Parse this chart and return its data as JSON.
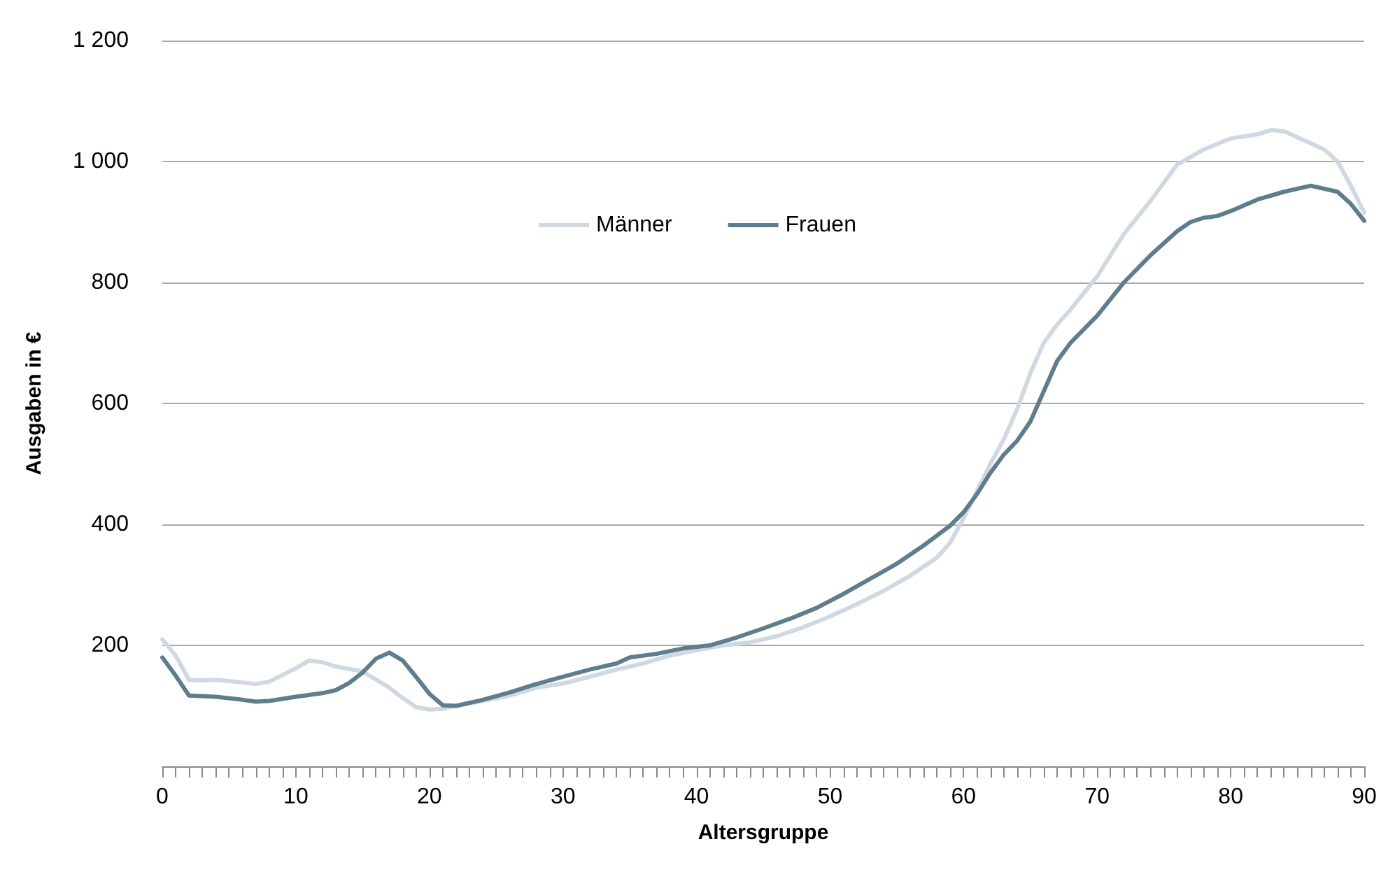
{
  "chart_data": {
    "type": "line",
    "xlabel": "Altersgruppe",
    "ylabel": "Ausgaben in €",
    "xlim": [
      0,
      90
    ],
    "xticks": [
      0,
      {
        "value": 1,
        "label": null
      },
      {
        "value": 2,
        "label": null
      },
      {
        "value": 3,
        "label": null
      },
      {
        "value": 4,
        "label": null
      },
      {
        "value": 5,
        "label": null
      },
      {
        "value": 6,
        "label": null
      },
      {
        "value": 7,
        "label": null
      },
      {
        "value": 8,
        "label": null
      },
      {
        "value": 9,
        "label": null
      },
      10,
      {
        "value": 11,
        "label": null
      },
      {
        "value": 12,
        "label": null
      },
      {
        "value": 13,
        "label": null
      },
      {
        "value": 14,
        "label": null
      },
      {
        "value": 15,
        "label": null
      },
      {
        "value": 16,
        "label": null
      },
      {
        "value": 17,
        "label": null
      },
      {
        "value": 18,
        "label": null
      },
      {
        "value": 19,
        "label": null
      },
      20,
      {
        "value": 21,
        "label": null
      },
      {
        "value": 22,
        "label": null
      },
      {
        "value": 23,
        "label": null
      },
      {
        "value": 24,
        "label": null
      },
      {
        "value": 25,
        "label": null
      },
      {
        "value": 26,
        "label": null
      },
      {
        "value": 27,
        "label": null
      },
      {
        "value": 28,
        "label": null
      },
      {
        "value": 29,
        "label": null
      },
      30,
      {
        "value": 31,
        "label": null
      },
      {
        "value": 32,
        "label": null
      },
      {
        "value": 33,
        "label": null
      },
      {
        "value": 34,
        "label": null
      },
      {
        "value": 35,
        "label": null
      },
      {
        "value": 36,
        "label": null
      },
      {
        "value": 37,
        "label": null
      },
      {
        "value": 38,
        "label": null
      },
      {
        "value": 39,
        "label": null
      },
      40,
      {
        "value": 41,
        "label": null
      },
      {
        "value": 42,
        "label": null
      },
      {
        "value": 43,
        "label": null
      },
      {
        "value": 44,
        "label": null
      },
      {
        "value": 45,
        "label": null
      },
      {
        "value": 46,
        "label": null
      },
      {
        "value": 47,
        "label": null
      },
      {
        "value": 48,
        "label": null
      },
      {
        "value": 49,
        "label": null
      },
      50,
      {
        "value": 51,
        "label": null
      },
      {
        "value": 52,
        "label": null
      },
      {
        "value": 53,
        "label": null
      },
      {
        "value": 54,
        "label": null
      },
      {
        "value": 55,
        "label": null
      },
      {
        "value": 56,
        "label": null
      },
      {
        "value": 57,
        "label": null
      },
      {
        "value": 58,
        "label": null
      },
      {
        "value": 59,
        "label": null
      },
      60,
      {
        "value": 61,
        "label": null
      },
      {
        "value": 62,
        "label": null
      },
      {
        "value": 63,
        "label": null
      },
      {
        "value": 64,
        "label": null
      },
      {
        "value": 65,
        "label": null
      },
      {
        "value": 66,
        "label": null
      },
      {
        "value": 67,
        "label": null
      },
      {
        "value": 68,
        "label": null
      },
      {
        "value": 69,
        "label": null
      },
      70,
      {
        "value": 71,
        "label": null
      },
      {
        "value": 72,
        "label": null
      },
      {
        "value": 73,
        "label": null
      },
      {
        "value": 74,
        "label": null
      },
      {
        "value": 75,
        "label": null
      },
      {
        "value": 76,
        "label": null
      },
      {
        "value": 77,
        "label": null
      },
      {
        "value": 78,
        "label": null
      },
      {
        "value": 79,
        "label": null
      },
      80,
      {
        "value": 81,
        "label": null
      },
      {
        "value": 82,
        "label": null
      },
      {
        "value": 83,
        "label": null
      },
      {
        "value": 84,
        "label": null
      },
      {
        "value": 85,
        "label": null
      },
      {
        "value": 86,
        "label": null
      },
      {
        "value": 87,
        "label": null
      },
      {
        "value": 88,
        "label": null
      },
      {
        "value": 89,
        "label": null
      },
      90
    ],
    "ylim": [
      0,
      1200
    ],
    "yticks": [
      {
        "value": 200,
        "label": "200"
      },
      {
        "value": 400,
        "label": "400"
      },
      {
        "value": 600,
        "label": "600"
      },
      {
        "value": 800,
        "label": "800"
      },
      {
        "value": 1000,
        "label": "1 000"
      },
      {
        "value": 1200,
        "label": "1 200"
      }
    ],
    "grid": "y",
    "legend": "top",
    "marker": "none",
    "line_style": "solid",
    "series": [
      {
        "name": "Männer",
        "color": "#d0d8e2",
        "x": [
          0,
          1,
          2,
          3,
          4,
          5,
          7,
          8,
          10,
          11,
          12,
          13,
          15,
          17,
          18,
          19,
          20,
          21,
          22,
          24,
          26,
          28,
          30,
          32,
          34,
          36,
          38,
          40,
          42,
          44,
          46,
          48,
          50,
          52,
          54,
          56,
          58,
          59,
          60,
          61,
          62,
          63,
          64,
          65,
          66,
          67,
          68,
          70,
          72,
          74,
          76,
          78,
          80,
          82,
          83,
          84,
          86,
          87,
          88,
          89,
          90
        ],
        "values": [
          210,
          183,
          143,
          142,
          143,
          141,
          136,
          140,
          162,
          175,
          172,
          165,
          157,
          130,
          113,
          98,
          94,
          95,
          100,
          108,
          117,
          130,
          137,
          148,
          160,
          170,
          183,
          192,
          200,
          205,
          215,
          230,
          248,
          268,
          290,
          315,
          345,
          370,
          410,
          455,
          500,
          540,
          590,
          650,
          700,
          730,
          755,
          810,
          880,
          935,
          995,
          1020,
          1038,
          1045,
          1052,
          1050,
          1030,
          1020,
          1000,
          960,
          915
        ]
      },
      {
        "name": "Frauen",
        "color": "#5f7d8c",
        "x": [
          0,
          1,
          2,
          4,
          6,
          7,
          8,
          10,
          12,
          13,
          14,
          15,
          16,
          17,
          18,
          19,
          20,
          21,
          22,
          24,
          26,
          28,
          30,
          32,
          34,
          35,
          37,
          39,
          41,
          43,
          45,
          47,
          49,
          51,
          53,
          55,
          57,
          59,
          60,
          61,
          62,
          63,
          64,
          65,
          66,
          67,
          68,
          70,
          72,
          74,
          76,
          77,
          78,
          79,
          80,
          82,
          84,
          86,
          88,
          89,
          90
        ],
        "values": [
          180,
          150,
          117,
          115,
          110,
          107,
          108,
          115,
          121,
          126,
          138,
          155,
          178,
          188,
          175,
          148,
          120,
          101,
          100,
          110,
          122,
          136,
          148,
          160,
          170,
          180,
          186,
          195,
          200,
          213,
          228,
          244,
          262,
          285,
          310,
          335,
          365,
          398,
          420,
          450,
          485,
          515,
          538,
          570,
          620,
          670,
          700,
          745,
          800,
          845,
          885,
          900,
          907,
          910,
          918,
          937,
          950,
          960,
          950,
          930,
          902
        ]
      }
    ]
  }
}
